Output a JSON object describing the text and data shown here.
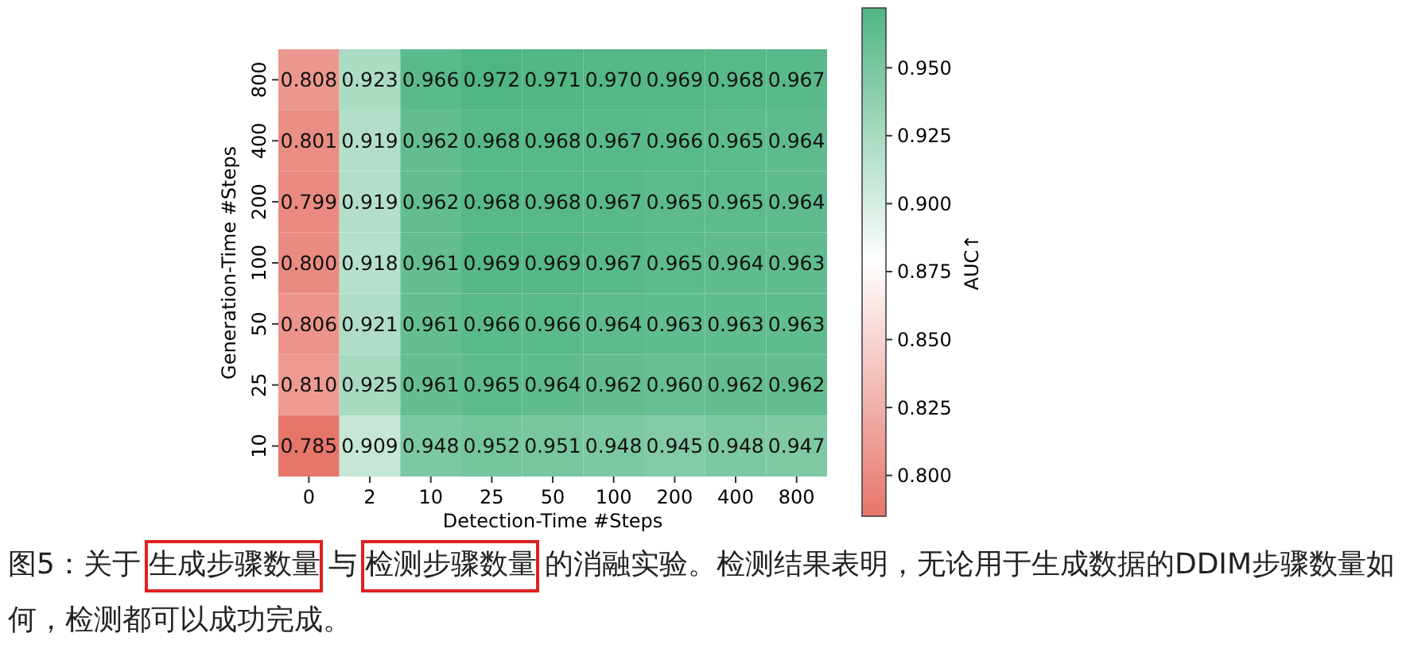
{
  "chart_data": {
    "type": "heatmap",
    "xlabel": "Detection-Time #Steps",
    "ylabel": "Generation-Time #Steps",
    "clabel": "AUC↑",
    "categories": [
      "0",
      "2",
      "10",
      "25",
      "50",
      "100",
      "200",
      "400",
      "800"
    ],
    "y_categories": [
      "800",
      "400",
      "200",
      "100",
      "50",
      "25",
      "10"
    ],
    "cells": [
      [
        0.808,
        0.923,
        0.966,
        0.972,
        0.971,
        0.97,
        0.969,
        0.968,
        0.967
      ],
      [
        0.801,
        0.919,
        0.962,
        0.968,
        0.968,
        0.967,
        0.966,
        0.965,
        0.964
      ],
      [
        0.799,
        0.919,
        0.962,
        0.968,
        0.968,
        0.967,
        0.965,
        0.965,
        0.964
      ],
      [
        0.8,
        0.918,
        0.961,
        0.969,
        0.969,
        0.967,
        0.965,
        0.964,
        0.963
      ],
      [
        0.806,
        0.921,
        0.961,
        0.966,
        0.966,
        0.964,
        0.963,
        0.963,
        0.963
      ],
      [
        0.81,
        0.925,
        0.961,
        0.965,
        0.964,
        0.962,
        0.96,
        0.962,
        0.962
      ],
      [
        0.785,
        0.909,
        0.948,
        0.952,
        0.951,
        0.948,
        0.945,
        0.948,
        0.947
      ]
    ],
    "cell_labels": [
      [
        "0.808",
        "0.923",
        "0.966",
        "0.972",
        "0.971",
        "0.970",
        "0.969",
        "0.968",
        "0.967"
      ],
      [
        "0.801",
        "0.919",
        "0.962",
        "0.968",
        "0.968",
        "0.967",
        "0.966",
        "0.965",
        "0.964"
      ],
      [
        "0.799",
        "0.919",
        "0.962",
        "0.968",
        "0.968",
        "0.967",
        "0.965",
        "0.965",
        "0.964"
      ],
      [
        "0.800",
        "0.918",
        "0.961",
        "0.969",
        "0.969",
        "0.967",
        "0.965",
        "0.964",
        "0.963"
      ],
      [
        "0.806",
        "0.921",
        "0.961",
        "0.966",
        "0.966",
        "0.964",
        "0.963",
        "0.963",
        "0.963"
      ],
      [
        "0.810",
        "0.925",
        "0.961",
        "0.965",
        "0.964",
        "0.962",
        "0.960",
        "0.962",
        "0.962"
      ],
      [
        "0.785",
        "0.909",
        "0.948",
        "0.952",
        "0.951",
        "0.948",
        "0.945",
        "0.948",
        "0.947"
      ]
    ],
    "cticks": [
      "0.800",
      "0.825",
      "0.850",
      "0.875",
      "0.900",
      "0.925",
      "0.950"
    ],
    "annotations": [
      "图5：关于生成步骤数量与检测步骤数量的消融实验。检测结果表明，无论用于生成数据的DDIM步骤数量如何，检测都可以成功完成。"
    ]
  }
}
